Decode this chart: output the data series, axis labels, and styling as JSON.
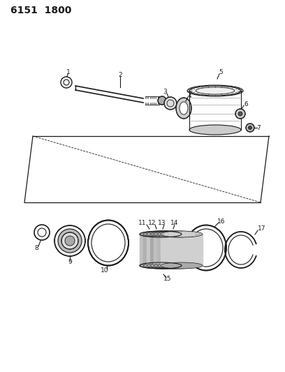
{
  "title": "6151  1800",
  "bg_color": "#ffffff",
  "line_color": "#1a1a1a",
  "title_fontsize": 10,
  "label_fontsize": 6.5,
  "fig_width": 4.08,
  "fig_height": 5.33,
  "dpi": 100
}
